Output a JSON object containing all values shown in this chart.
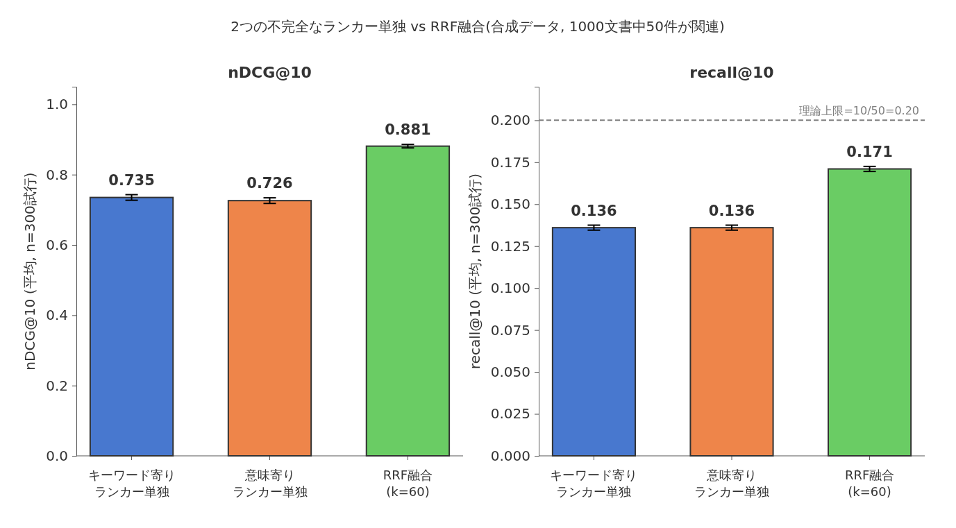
{
  "chart_data": [
    {
      "type": "bar",
      "title": "nDCG@10",
      "ylabel": "nDCG@10 (平均, n=300試行)",
      "annotations": [
        "2つの不完全なランカー単独 vs RRF融合(合成データ, 1000文書中50件が関連)"
      ],
      "categories": [
        "キーワード寄りランカー単独",
        "意味寄りランカー単独",
        "RRF融合(k=60)"
      ],
      "values": [
        0.735,
        0.726,
        0.881
      ],
      "colors": [
        "#4878cf",
        "#ee854a",
        "#6acc64"
      ],
      "errors": [
        0.008,
        0.008,
        0.005
      ],
      "ylim": [
        0,
        1.05
      ],
      "yticks": [
        {
          "value": 0,
          "label": "0.0"
        },
        {
          "value": 0.2,
          "label": "0.2"
        },
        {
          "value": 0.4,
          "label": "0.4"
        },
        {
          "value": 0.6,
          "label": "0.6"
        },
        {
          "value": 0.8,
          "label": "0.8"
        },
        {
          "value": 1,
          "label": "1.0"
        }
      ],
      "data_labels": true,
      "grid": false
    },
    {
      "type": "bar",
      "title": "recall@10",
      "ylabel": "recall@10 (平均, n=300試行)",
      "categories": [
        "キーワード寄りランカー単独",
        "意味寄りランカー単独",
        "RRF融合(k=60)"
      ],
      "values": [
        0.136,
        0.136,
        0.171
      ],
      "colors": [
        "#4878cf",
        "#ee854a",
        "#6acc64"
      ],
      "errors": [
        0.0015,
        0.0015,
        0.0015
      ],
      "ylim": [
        0,
        0.22
      ],
      "yticks": [
        {
          "value": 0,
          "label": "0.000"
        },
        {
          "value": 0.025,
          "label": "0.025"
        },
        {
          "value": 0.05,
          "label": "0.050"
        },
        {
          "value": 0.075,
          "label": "0.075"
        },
        {
          "value": 0.1,
          "label": "0.100"
        },
        {
          "value": 0.125,
          "label": "0.125"
        },
        {
          "value": 0.15,
          "label": "0.150"
        },
        {
          "value": 0.175,
          "label": "0.175"
        },
        {
          "value": 0.2,
          "label": "0.200"
        }
      ],
      "ref_lines": [
        {
          "axis": "y",
          "value": 0.2,
          "label": "理論上限=10/50=0.20",
          "color": "#808080",
          "line_style": "dashed"
        }
      ],
      "data_labels": true,
      "grid": false
    }
  ]
}
